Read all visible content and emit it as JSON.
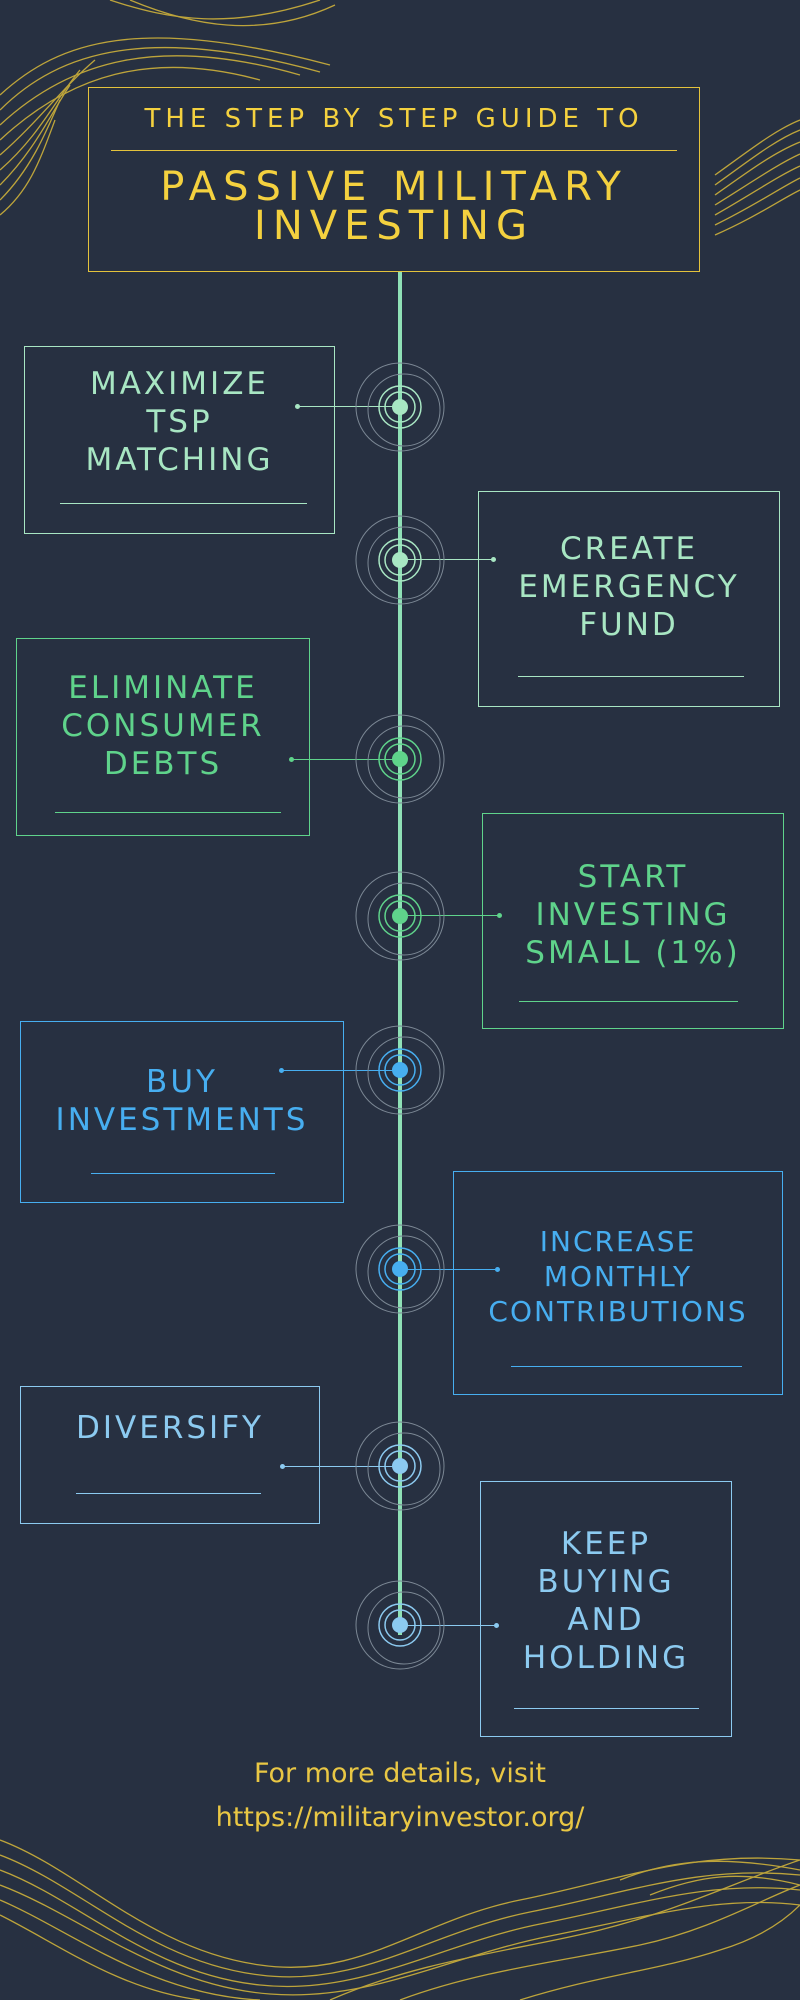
{
  "header": {
    "subtitle": "THE STEP BY STEP GUIDE TO",
    "title": "PASSIVE MILITARY INVESTING"
  },
  "steps": [
    {
      "label": "MAXIMIZE\nTSP\nMATCHING",
      "color": "#a8e6c3"
    },
    {
      "label": "CREATE\nEMERGENCY\nFUND",
      "color": "#a8e6c3"
    },
    {
      "label": "ELIMINATE\nCONSUMER\nDEBTS",
      "color": "#5fd38b"
    },
    {
      "label": "START\nINVESTING\nSMALL (1%)",
      "color": "#5fd38b"
    },
    {
      "label": "BUY\nINVESTMENTS",
      "color": "#47aef0"
    },
    {
      "label": "INCREASE\nMONTHLY\nCONTRIBUTIONS",
      "color": "#47aef0"
    },
    {
      "label": "DIVERSIFY",
      "color": "#8ccaf0"
    },
    {
      "label": "KEEP\nBUYING\nAND\nHOLDING",
      "color": "#8ccaf0"
    }
  ],
  "footer": {
    "line1": "For more details, visit",
    "line2": "https://militaryinvestor.org/"
  },
  "colors": {
    "background": "#273041",
    "accent_yellow": "#f4d13f",
    "spine": "#8fe0b6"
  }
}
